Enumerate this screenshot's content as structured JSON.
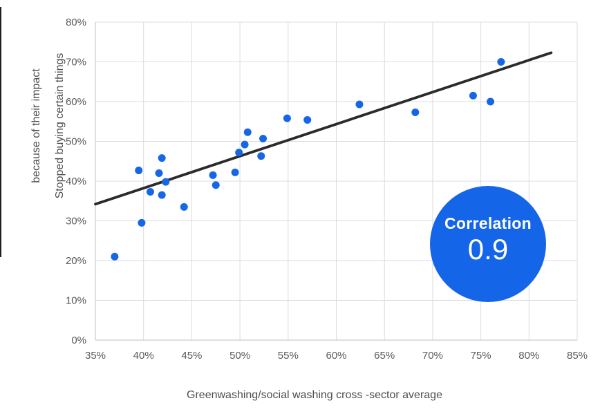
{
  "chart_data": {
    "type": "scatter",
    "title": "",
    "xlabel": "Greenwashing/social washing cross -sector average",
    "ylabel_lines": [
      "Stopped buying certain things",
      "because of their impact"
    ],
    "xlim": [
      35,
      85
    ],
    "ylim": [
      0,
      80
    ],
    "grid": true,
    "x_tick_values": [
      35,
      40,
      45,
      50,
      55,
      60,
      65,
      70,
      75,
      80,
      85
    ],
    "x_tick_labels": [
      "35%",
      "40%",
      "45%",
      "50%",
      "55%",
      "60%",
      "65%",
      "70%",
      "75%",
      "80%",
      "85%"
    ],
    "y_tick_values": [
      0,
      10,
      20,
      30,
      40,
      50,
      60,
      70,
      80
    ],
    "y_tick_labels": [
      "0%",
      "10%",
      "20%",
      "30%",
      "40%",
      "50%",
      "60%",
      "70%",
      "80%"
    ],
    "points": [
      [
        37.0,
        21.0
      ],
      [
        39.5,
        42.7
      ],
      [
        39.8,
        29.5
      ],
      [
        40.7,
        37.3
      ],
      [
        41.6,
        42.0
      ],
      [
        41.9,
        45.8
      ],
      [
        41.9,
        36.5
      ],
      [
        42.3,
        39.8
      ],
      [
        44.2,
        33.5
      ],
      [
        47.2,
        41.5
      ],
      [
        47.5,
        39.0
      ],
      [
        49.5,
        42.2
      ],
      [
        49.9,
        47.2
      ],
      [
        50.5,
        49.2
      ],
      [
        50.8,
        52.3
      ],
      [
        52.2,
        46.3
      ],
      [
        52.4,
        50.7
      ],
      [
        54.9,
        55.8
      ],
      [
        57.0,
        55.4
      ],
      [
        62.4,
        59.3
      ],
      [
        68.2,
        57.3
      ],
      [
        74.2,
        61.5
      ],
      [
        76.0,
        60.0
      ],
      [
        77.1,
        70.0
      ]
    ],
    "trendline": {
      "x1": 35,
      "y1": 34.2,
      "x2": 82.3,
      "y2": 72.3
    },
    "annotation": {
      "label": "Correlation",
      "value": "0.9"
    },
    "colors": {
      "point": "#1666E8",
      "trendline": "#2B2B2B",
      "gridline": "#DCDCDC",
      "axis_line": "#BFBFBF",
      "tick_label": "#595959",
      "axis_title": "#4D4D4D",
      "badge_bg": "#1565E8",
      "badge_text": "#FFFFFF"
    }
  }
}
